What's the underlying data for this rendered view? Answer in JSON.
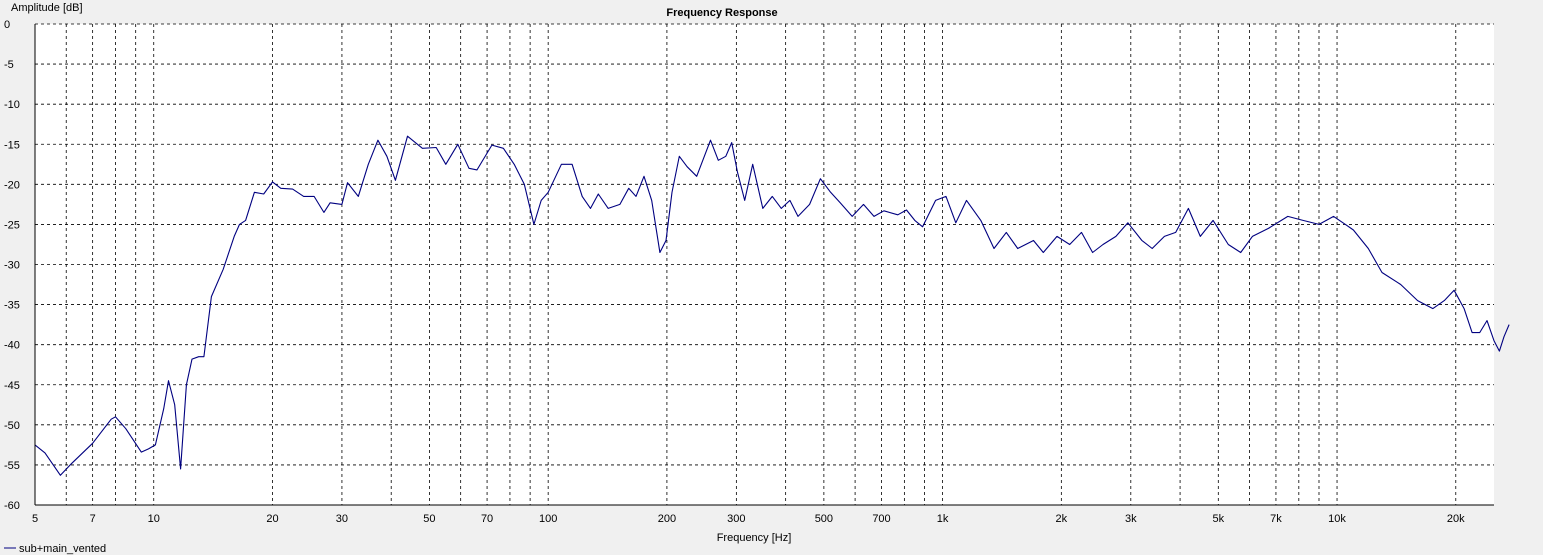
{
  "chart_data": {
    "type": "line",
    "title": "Frequency Response",
    "xlabel": "Frequency [Hz]",
    "ylabel": "Amplitude [dB]",
    "x_scale": "log",
    "xlim": [
      5,
      25000
    ],
    "ylim": [
      -60,
      0
    ],
    "grid": true,
    "legend_position": "bottom-left",
    "x_ticks": [
      {
        "value": 5,
        "label": "5"
      },
      {
        "value": 7,
        "label": "7"
      },
      {
        "value": 10,
        "label": "10"
      },
      {
        "value": 20,
        "label": "20"
      },
      {
        "value": 30,
        "label": "30"
      },
      {
        "value": 50,
        "label": "50"
      },
      {
        "value": 70,
        "label": "70"
      },
      {
        "value": 100,
        "label": "100"
      },
      {
        "value": 200,
        "label": "200"
      },
      {
        "value": 300,
        "label": "300"
      },
      {
        "value": 500,
        "label": "500"
      },
      {
        "value": 700,
        "label": "700"
      },
      {
        "value": 1000,
        "label": "1k"
      },
      {
        "value": 2000,
        "label": "2k"
      },
      {
        "value": 3000,
        "label": "3k"
      },
      {
        "value": 5000,
        "label": "5k"
      },
      {
        "value": 7000,
        "label": "7k"
      },
      {
        "value": 10000,
        "label": "10k"
      },
      {
        "value": 20000,
        "label": "20k"
      }
    ],
    "y_ticks": [
      0,
      -5,
      -10,
      -15,
      -20,
      -25,
      -30,
      -35,
      -40,
      -45,
      -50,
      -55,
      -60
    ],
    "x_minor_grid": [
      6,
      8,
      9,
      40,
      60,
      80,
      90,
      400,
      600,
      800,
      900,
      4000,
      6000,
      8000,
      9000
    ],
    "series": [
      {
        "name": "sub+main_vented",
        "color": "#000080",
        "points": [
          [
            5.0,
            -52.5
          ],
          [
            5.3,
            -53.5
          ],
          [
            5.8,
            -56.3
          ],
          [
            6.2,
            -54.8
          ],
          [
            7.0,
            -52.3
          ],
          [
            7.8,
            -49.3
          ],
          [
            8.0,
            -49.0
          ],
          [
            8.5,
            -50.5
          ],
          [
            9.3,
            -53.4
          ],
          [
            9.7,
            -53.0
          ],
          [
            10.1,
            -52.5
          ],
          [
            10.6,
            -48.0
          ],
          [
            10.9,
            -44.5
          ],
          [
            11.3,
            -47.5
          ],
          [
            11.7,
            -55.5
          ],
          [
            12.1,
            -45.0
          ],
          [
            12.5,
            -41.8
          ],
          [
            13.0,
            -41.5
          ],
          [
            13.4,
            -41.5
          ],
          [
            14.0,
            -34.0
          ],
          [
            15.0,
            -30.6
          ],
          [
            16.0,
            -26.5
          ],
          [
            16.5,
            -25.0
          ],
          [
            17.1,
            -24.5
          ],
          [
            18.0,
            -21.0
          ],
          [
            19.0,
            -21.2
          ],
          [
            20.0,
            -19.7
          ],
          [
            21.0,
            -20.5
          ],
          [
            22.5,
            -20.6
          ],
          [
            24.0,
            -21.5
          ],
          [
            25.5,
            -21.5
          ],
          [
            27.0,
            -23.5
          ],
          [
            28.0,
            -22.3
          ],
          [
            30.0,
            -22.5
          ],
          [
            31.0,
            -19.8
          ],
          [
            33.0,
            -21.5
          ],
          [
            35.0,
            -17.5
          ],
          [
            37.0,
            -14.5
          ],
          [
            39.0,
            -16.5
          ],
          [
            41.0,
            -19.5
          ],
          [
            44.0,
            -14.0
          ],
          [
            48.0,
            -15.5
          ],
          [
            52.0,
            -15.4
          ],
          [
            55.0,
            -17.5
          ],
          [
            59.0,
            -15.0
          ],
          [
            63.0,
            -18.0
          ],
          [
            66.0,
            -18.2
          ],
          [
            72.0,
            -15.1
          ],
          [
            77.0,
            -15.5
          ],
          [
            82.0,
            -17.5
          ],
          [
            87.0,
            -20.0
          ],
          [
            92.0,
            -25.0
          ],
          [
            96.0,
            -22.0
          ],
          [
            100.0,
            -21.0
          ],
          [
            108.0,
            -17.5
          ],
          [
            115.0,
            -17.5
          ],
          [
            122.0,
            -21.5
          ],
          [
            128.0,
            -23.0
          ],
          [
            134.0,
            -21.2
          ],
          [
            142.0,
            -23.0
          ],
          [
            152.0,
            -22.5
          ],
          [
            160.0,
            -20.5
          ],
          [
            167.0,
            -21.5
          ],
          [
            175.0,
            -19.0
          ],
          [
            183.0,
            -22.0
          ],
          [
            192.0,
            -28.5
          ],
          [
            199.0,
            -27.0
          ],
          [
            206.0,
            -21.0
          ],
          [
            215.0,
            -16.5
          ],
          [
            225.0,
            -17.8
          ],
          [
            238.0,
            -19.0
          ],
          [
            258.0,
            -14.5
          ],
          [
            270.0,
            -17.0
          ],
          [
            282.0,
            -16.5
          ],
          [
            292.0,
            -14.8
          ],
          [
            302.0,
            -18.5
          ],
          [
            315.0,
            -22.0
          ],
          [
            330.0,
            -17.5
          ],
          [
            350.0,
            -23.0
          ],
          [
            370.0,
            -21.5
          ],
          [
            390.0,
            -23.0
          ],
          [
            410.0,
            -22.0
          ],
          [
            430.0,
            -24.0
          ],
          [
            460.0,
            -22.5
          ],
          [
            490.0,
            -19.3
          ],
          [
            520.0,
            -21.0
          ],
          [
            550.0,
            -22.3
          ],
          [
            590.0,
            -24.0
          ],
          [
            630.0,
            -22.5
          ],
          [
            670.0,
            -24.0
          ],
          [
            710.0,
            -23.3
          ],
          [
            770.0,
            -23.8
          ],
          [
            810.0,
            -23.2
          ],
          [
            850.0,
            -24.5
          ],
          [
            890.0,
            -25.3
          ],
          [
            960.0,
            -22.0
          ],
          [
            1020.0,
            -21.5
          ],
          [
            1080.0,
            -24.8
          ],
          [
            1150.0,
            -22.0
          ],
          [
            1250.0,
            -24.5
          ],
          [
            1350.0,
            -28.0
          ],
          [
            1450.0,
            -26.0
          ],
          [
            1550.0,
            -28.0
          ],
          [
            1700.0,
            -27.0
          ],
          [
            1800.0,
            -28.5
          ],
          [
            1950.0,
            -26.5
          ],
          [
            2100.0,
            -27.5
          ],
          [
            2250.0,
            -26.0
          ],
          [
            2400.0,
            -28.5
          ],
          [
            2550.0,
            -27.5
          ],
          [
            2750.0,
            -26.5
          ],
          [
            2950.0,
            -24.8
          ],
          [
            3200.0,
            -27.0
          ],
          [
            3400.0,
            -28.0
          ],
          [
            3650.0,
            -26.5
          ],
          [
            3900.0,
            -26.0
          ],
          [
            4200.0,
            -23.0
          ],
          [
            4500.0,
            -26.5
          ],
          [
            4850.0,
            -24.5
          ],
          [
            5300.0,
            -27.5
          ],
          [
            5700.0,
            -28.5
          ],
          [
            6100.0,
            -26.5
          ],
          [
            6700.0,
            -25.5
          ],
          [
            7500.0,
            -24.0
          ],
          [
            8200.0,
            -24.5
          ],
          [
            9000.0,
            -25.0
          ],
          [
            9800.0,
            -24.0
          ],
          [
            10500.0,
            -25.0
          ],
          [
            11000.0,
            -25.7
          ],
          [
            12000.0,
            -28.0
          ],
          [
            13000.0,
            -31.0
          ],
          [
            14500.0,
            -32.5
          ],
          [
            16000.0,
            -34.5
          ],
          [
            17500.0,
            -35.5
          ],
          [
            18700.0,
            -34.5
          ],
          [
            19800.0,
            -33.2
          ],
          [
            21000.0,
            -35.5
          ],
          [
            22000.0,
            -38.5
          ],
          [
            23000.0,
            -38.5
          ],
          [
            24000.0,
            -37.0
          ],
          [
            25000.0,
            -39.5
          ],
          [
            25800.0,
            -40.8
          ],
          [
            26500.0,
            -39.0
          ],
          [
            27300.0,
            -37.5
          ]
        ]
      }
    ]
  }
}
